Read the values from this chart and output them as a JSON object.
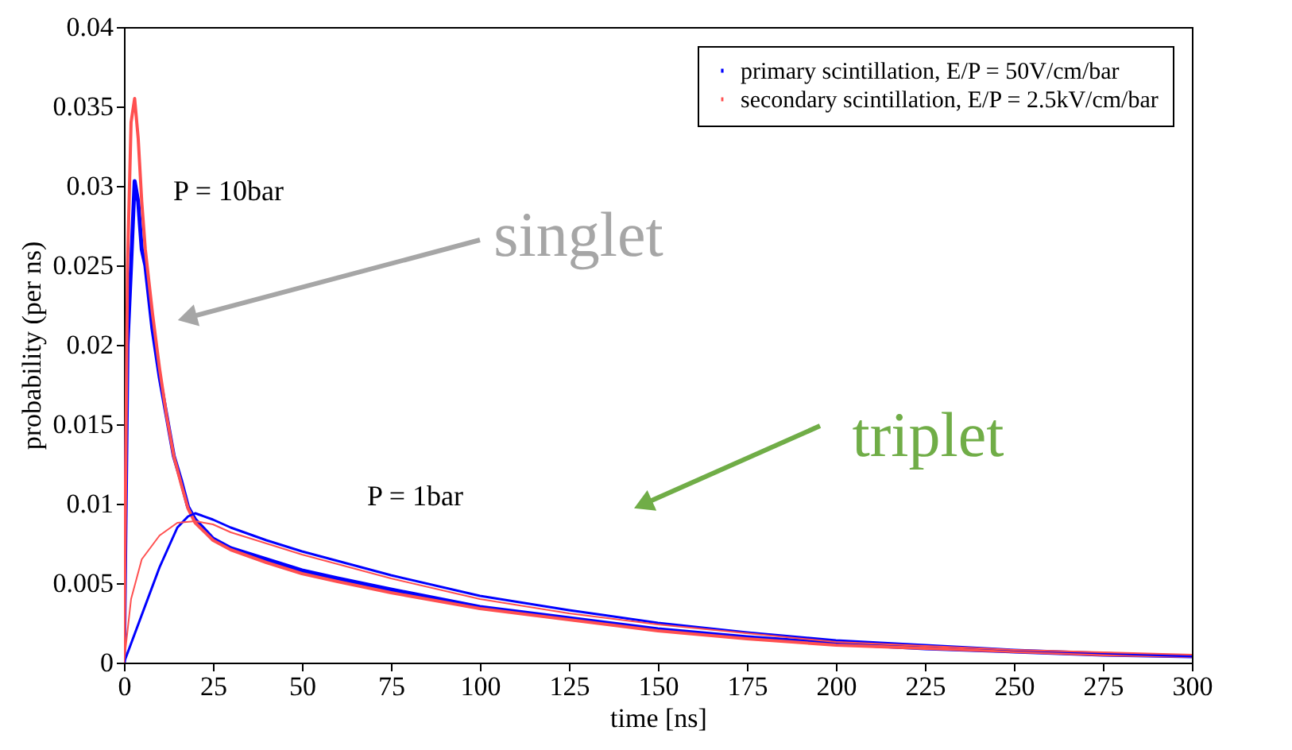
{
  "chart_data": {
    "type": "line",
    "xlabel": "time [ns]",
    "ylabel": "probability (per ns)",
    "xlim": [
      0,
      300
    ],
    "xticks": [
      0,
      25,
      50,
      75,
      100,
      125,
      150,
      175,
      200,
      225,
      250,
      275,
      300
    ],
    "ylim": [
      0,
      0.04
    ],
    "yticks": [
      0,
      0.005,
      0.01,
      0.015,
      0.02,
      0.025,
      0.03,
      0.035,
      0.04
    ],
    "legend": "top right",
    "grid": false,
    "series": [
      {
        "name": "primary scintillation,     E/P = 50V/cm/bar",
        "color": "#0000ff",
        "x": [
          0,
          1,
          2,
          3,
          4,
          5,
          6,
          8,
          10,
          12,
          14,
          16,
          18,
          20,
          25,
          30,
          40,
          50,
          60,
          75,
          100,
          125,
          150,
          175,
          200,
          225,
          250,
          275,
          300
        ],
        "values": [
          0,
          0.02,
          0.025,
          0.0303,
          0.029,
          0.026,
          0.025,
          0.021,
          0.018,
          0.0155,
          0.013,
          0.0115,
          0.0098,
          0.009,
          0.0078,
          0.0072,
          0.0065,
          0.0058,
          0.0053,
          0.0046,
          0.0035,
          0.0028,
          0.0021,
          0.0016,
          0.0012,
          0.0009,
          0.0007,
          0.0005,
          0.0004
        ]
      },
      {
        "name": "secondary scintillation, E/P = 2.5kV/cm/bar",
        "color": "#ff5050",
        "x": [
          0,
          1,
          2,
          3,
          4,
          5,
          6,
          8,
          10,
          12,
          14,
          16,
          18,
          20,
          25,
          30,
          40,
          50,
          60,
          75,
          100,
          125,
          150,
          175,
          200,
          225,
          250,
          275,
          300
        ],
        "values": [
          0,
          0.025,
          0.034,
          0.0355,
          0.033,
          0.029,
          0.026,
          0.022,
          0.0185,
          0.0155,
          0.013,
          0.0113,
          0.0097,
          0.0088,
          0.0077,
          0.0071,
          0.0063,
          0.0056,
          0.0051,
          0.0044,
          0.0034,
          0.0027,
          0.002,
          0.0015,
          0.0011,
          0.0009,
          0.0007,
          0.0005,
          0.0004
        ]
      },
      {
        "color": "#0000ff",
        "x": [
          0,
          5,
          10,
          15,
          18,
          20,
          25,
          30,
          40,
          50,
          75,
          100,
          125,
          150,
          175,
          200,
          250,
          300
        ],
        "values": [
          0,
          0.003,
          0.006,
          0.0085,
          0.0092,
          0.0094,
          0.009,
          0.0085,
          0.0077,
          0.007,
          0.0055,
          0.0042,
          0.0033,
          0.0025,
          0.0019,
          0.0014,
          0.0008,
          0.0004
        ]
      },
      {
        "color": "#ff5050",
        "x": [
          0,
          2,
          5,
          10,
          15,
          20,
          25,
          30,
          40,
          50,
          75,
          100,
          125,
          150,
          200,
          250,
          300
        ],
        "values": [
          0,
          0.004,
          0.0065,
          0.008,
          0.0088,
          0.0089,
          0.0087,
          0.0082,
          0.0075,
          0.0068,
          0.0053,
          0.004,
          0.0031,
          0.0024,
          0.0013,
          0.0008,
          0.0005
        ]
      }
    ],
    "annotations": [
      "P = 10bar",
      "P = 1bar",
      "singlet",
      "triplet"
    ]
  }
}
